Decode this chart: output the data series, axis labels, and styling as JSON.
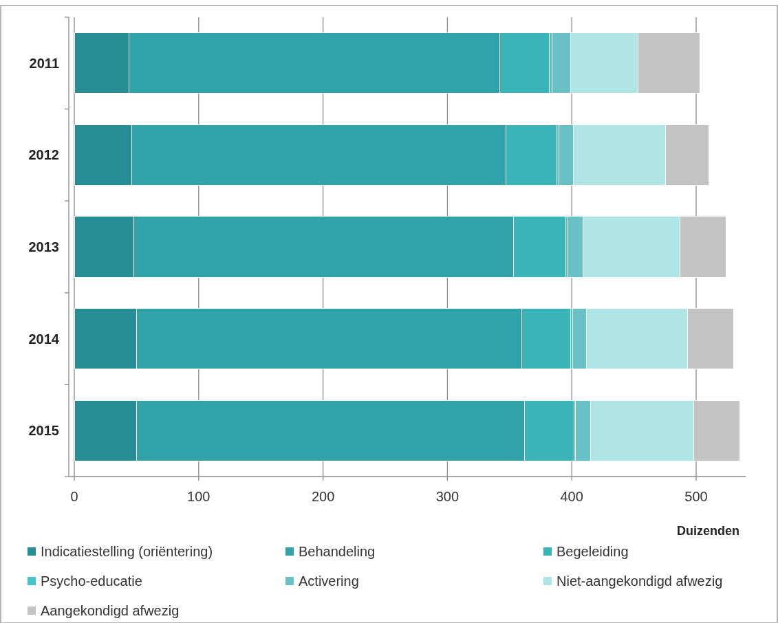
{
  "chart_data": {
    "type": "bar",
    "orientation": "horizontal",
    "stacked": true,
    "categories": [
      "2011",
      "2012",
      "2013",
      "2014",
      "2015"
    ],
    "series": [
      {
        "name": "Indicatiestelling (oriëntering)",
        "color": "#268e94",
        "values": [
          44,
          46,
          48,
          50,
          50
        ]
      },
      {
        "name": "Behandeling",
        "color": "#31a3a8",
        "values": [
          298,
          301,
          305,
          310,
          312
        ]
      },
      {
        "name": "Begeleiding",
        "color": "#3ab4b8",
        "values": [
          40,
          41,
          42,
          39,
          40
        ]
      },
      {
        "name": "Psycho-educatie",
        "color": "#48c4c8",
        "values": [
          2,
          1.5,
          2,
          1.5,
          1
        ]
      },
      {
        "name": "Activering",
        "color": "#68c1c5",
        "values": [
          15,
          12,
          12,
          11.5,
          12
        ]
      },
      {
        "name": "Niet-aangekondigd afwezig",
        "color": "#b0e5e5",
        "values": [
          54,
          74,
          78,
          81,
          83
        ]
      },
      {
        "name": "Aangekondigd afwezig",
        "color": "#c4c4c4",
        "values": [
          50,
          35,
          37,
          37,
          37
        ]
      }
    ],
    "xlim": [
      0,
      540
    ],
    "xticks": [
      0,
      100,
      200,
      300,
      400,
      500
    ],
    "xlabel": "Duizenden",
    "grid": "x",
    "legend": "bottom"
  }
}
